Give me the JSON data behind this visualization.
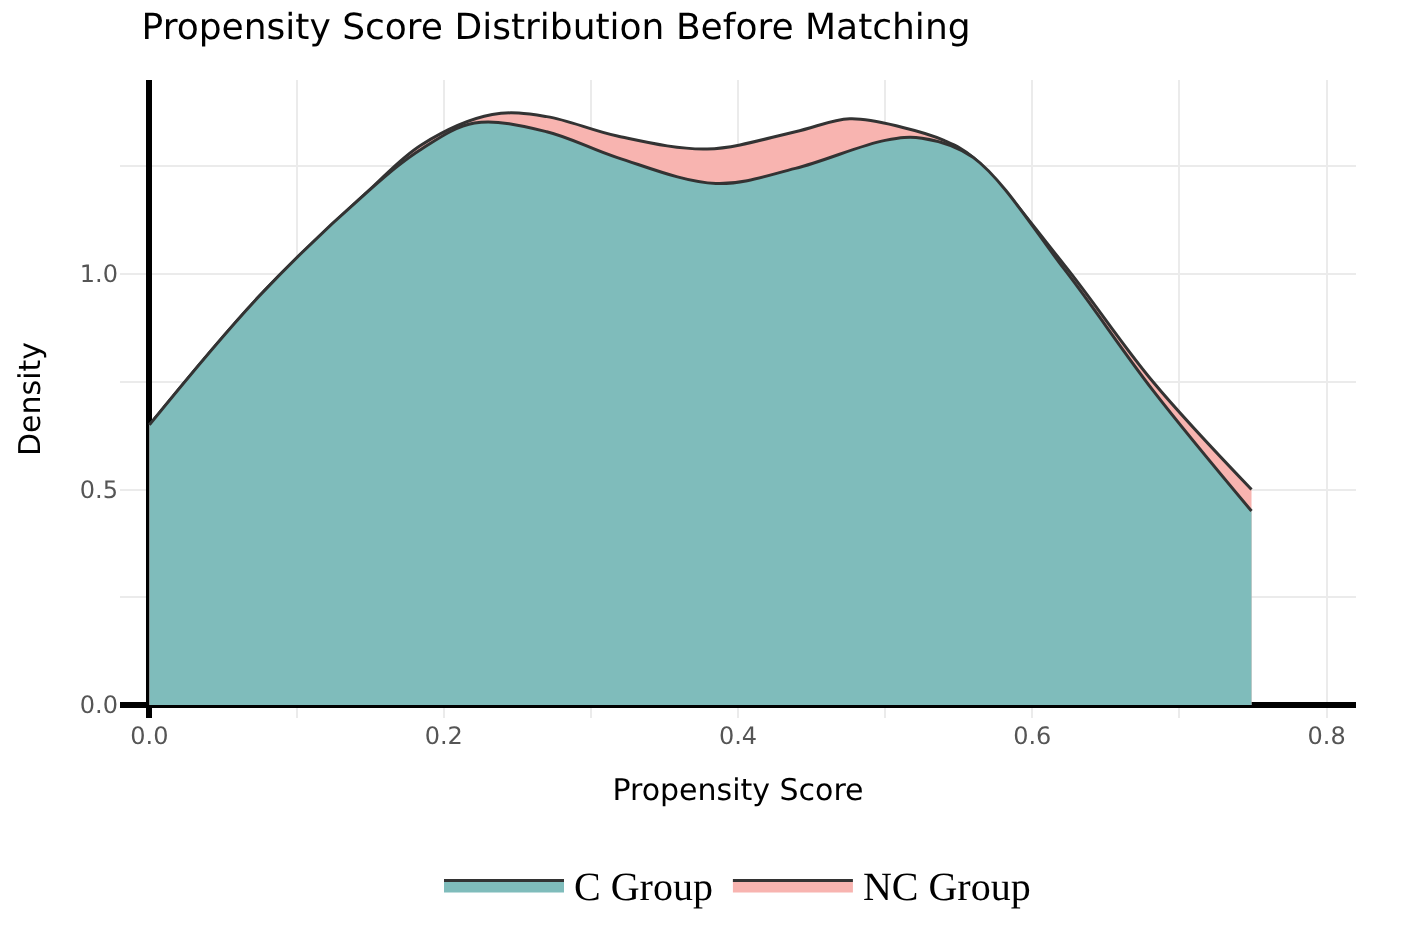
{
  "chart_data": {
    "type": "area",
    "title": "Propensity Score Distribution Before Matching",
    "xlabel": "Propensity Score",
    "ylabel": "Density",
    "xlim": [
      -0.02,
      0.82
    ],
    "ylim": [
      -0.03,
      1.45
    ],
    "xticks": [
      {
        "value": 0.0,
        "label": "0.0"
      },
      {
        "value": 0.1,
        "label": null
      },
      {
        "value": 0.2,
        "label": "0.2"
      },
      {
        "value": 0.3,
        "label": null
      },
      {
        "value": 0.4,
        "label": "0.4"
      },
      {
        "value": 0.5,
        "label": null
      },
      {
        "value": 0.6,
        "label": "0.6"
      },
      {
        "value": 0.7,
        "label": null
      },
      {
        "value": 0.8,
        "label": "0.8"
      }
    ],
    "yticks": [
      {
        "value": 0.0,
        "label": "0.0"
      },
      {
        "value": 0.25,
        "label": null
      },
      {
        "value": 0.5,
        "label": "0.5"
      },
      {
        "value": 0.75,
        "label": null
      },
      {
        "value": 1.0,
        "label": "1.0"
      },
      {
        "value": 1.25,
        "label": null
      }
    ],
    "grid": true,
    "legend": "bottom",
    "series": [
      {
        "name": "NC Group",
        "color": "#f8b4b0",
        "x": [
          0.0,
          0.075,
          0.148,
          0.185,
          0.233,
          0.27,
          0.318,
          0.379,
          0.439,
          0.476,
          0.512,
          0.54,
          0.56,
          0.622,
          0.682,
          0.749
        ],
        "values": [
          0.65,
          0.95,
          1.19,
          1.3,
          1.37,
          1.365,
          1.32,
          1.29,
          1.33,
          1.36,
          1.34,
          1.31,
          1.27,
          1.02,
          0.75,
          0.5
        ]
      },
      {
        "name": "C Group",
        "color": "#7fbcbb",
        "x": [
          0.0,
          0.075,
          0.148,
          0.185,
          0.221,
          0.27,
          0.318,
          0.385,
          0.439,
          0.5,
          0.525,
          0.56,
          0.622,
          0.682,
          0.749
        ],
        "values": [
          0.65,
          0.95,
          1.19,
          1.29,
          1.35,
          1.33,
          1.27,
          1.21,
          1.245,
          1.31,
          1.315,
          1.27,
          1.01,
          0.73,
          0.45
        ]
      }
    ]
  }
}
